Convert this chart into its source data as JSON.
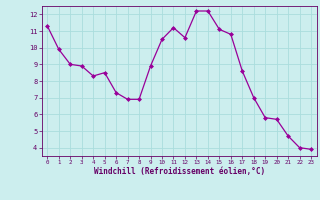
{
  "x": [
    0,
    1,
    2,
    3,
    4,
    5,
    6,
    7,
    8,
    9,
    10,
    11,
    12,
    13,
    14,
    15,
    16,
    17,
    18,
    19,
    20,
    21,
    22,
    23
  ],
  "y": [
    11.3,
    9.9,
    9.0,
    8.9,
    8.3,
    8.5,
    7.3,
    6.9,
    6.9,
    8.9,
    10.5,
    11.2,
    10.6,
    12.2,
    12.2,
    11.1,
    10.8,
    8.6,
    7.0,
    5.8,
    5.7,
    4.7,
    4.0,
    3.9
  ],
  "line_color": "#990099",
  "marker": "D",
  "marker_size": 2,
  "bg_color": "#cceeee",
  "grid_color": "#aadddd",
  "xlabel": "Windchill (Refroidissement éolien,°C)",
  "xlabel_color": "#660066",
  "tick_color": "#660066",
  "ylim": [
    3.5,
    12.5
  ],
  "xlim": [
    -0.5,
    23.5
  ],
  "yticks": [
    4,
    5,
    6,
    7,
    8,
    9,
    10,
    11,
    12
  ],
  "xticks": [
    0,
    1,
    2,
    3,
    4,
    5,
    6,
    7,
    8,
    9,
    10,
    11,
    12,
    13,
    14,
    15,
    16,
    17,
    18,
    19,
    20,
    21,
    22,
    23
  ]
}
